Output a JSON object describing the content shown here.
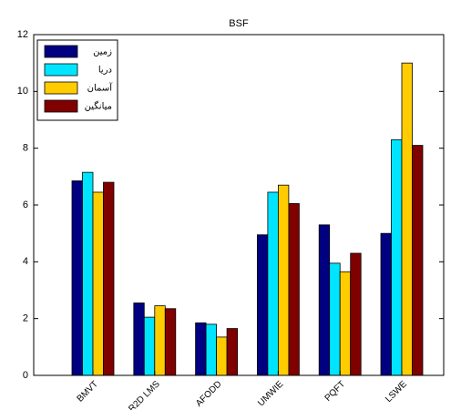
{
  "chart_data": {
    "type": "bar",
    "title": "BSF",
    "categories": [
      "BMVT",
      "R2D LMS",
      "AFODD",
      "UMWIE",
      "PQFT",
      "LSWE"
    ],
    "series": [
      {
        "name": "زمین",
        "color": "#000080",
        "values": [
          6.85,
          2.55,
          1.85,
          4.95,
          5.3,
          5.0
        ]
      },
      {
        "name": "دریا",
        "color": "#00e5ff",
        "values": [
          7.15,
          2.05,
          1.8,
          6.45,
          3.95,
          8.3
        ]
      },
      {
        "name": "آسمان",
        "color": "#ffcc00",
        "values": [
          6.45,
          2.45,
          1.35,
          6.7,
          3.65,
          11.0
        ]
      },
      {
        "name": "میانگین",
        "color": "#800000",
        "values": [
          6.8,
          2.35,
          1.65,
          6.05,
          4.3,
          8.1
        ]
      }
    ],
    "ylim": [
      0,
      12
    ],
    "yticks": [
      0,
      2,
      4,
      6,
      8,
      10,
      12
    ],
    "legend": "upper left",
    "grid": false
  }
}
